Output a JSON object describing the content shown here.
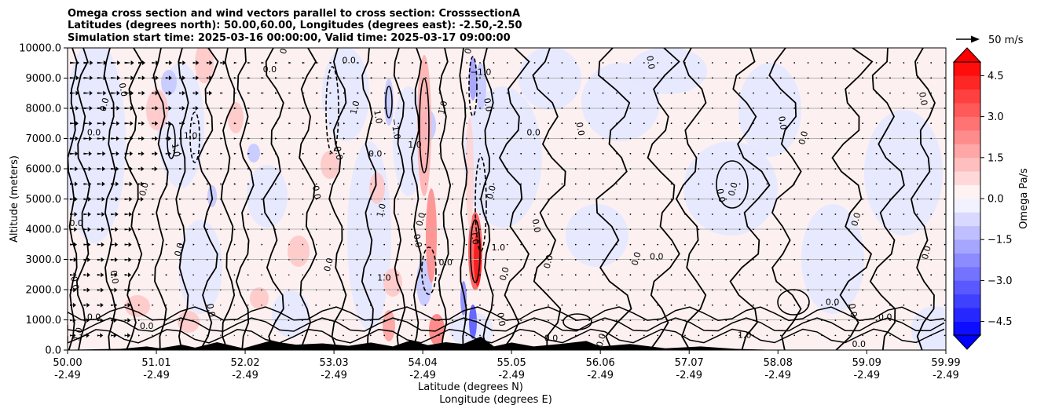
{
  "title_lines": [
    "Omega cross section and wind vectors parallel to cross section: CrosssectionA",
    "Latitudes (degrees north): 50.00,60.00, Longitudes (degrees east): -2.50,-2.50",
    "Simulation start time: 2025-03-16 00:00:00, Valid time: 2025-03-17 09:00:00"
  ],
  "chart_data": {
    "type": "heatmap",
    "x_ticks": [
      {
        "lat": "50.00",
        "lon": "-2.49"
      },
      {
        "lat": "51.01",
        "lon": "-2.49"
      },
      {
        "lat": "52.02",
        "lon": "-2.49"
      },
      {
        "lat": "53.03",
        "lon": "-2.49"
      },
      {
        "lat": "54.04",
        "lon": "-2.49"
      },
      {
        "lat": "55.05",
        "lon": "-2.49"
      },
      {
        "lat": "56.06",
        "lon": "-2.49"
      },
      {
        "lat": "57.07",
        "lon": "-2.49"
      },
      {
        "lat": "58.08",
        "lon": "-2.49"
      },
      {
        "lat": "59.09",
        "lon": "-2.49"
      },
      {
        "lat": "59.99",
        "lon": "-2.49"
      }
    ],
    "xlim": [
      50.0,
      59.99
    ],
    "y_ticks": [
      "0.0",
      "1000.0",
      "2000.0",
      "3000.0",
      "4000.0",
      "5000.0",
      "6000.0",
      "7000.0",
      "8000.0",
      "9000.0",
      "10000.0"
    ],
    "ylim": [
      0,
      10000
    ],
    "xlabel": "Latitude (degrees N)",
    "xlabel2": "Longitude (degrees E)",
    "ylabel": "Altitude (meters)",
    "grid": "horizontal",
    "colorbar": {
      "label": "Omega Pa/s",
      "ticks": [
        "4.5",
        "3.0",
        "1.5",
        "0.0",
        "−1.5",
        "−3.0",
        "−4.5"
      ],
      "range": [
        -5.0,
        5.0
      ],
      "levels": 20,
      "extend": "both",
      "colormap": "bwr"
    },
    "quiver_key": {
      "label": "50 m/s",
      "value": 50
    },
    "contour_labels": [
      {
        "text": "0.0",
        "lat": 50.1,
        "alt": 4100
      },
      {
        "text": "0.0",
        "lat": 50.05,
        "alt": 2200
      },
      {
        "text": "1.0",
        "lat": 50.15,
        "alt": 500
      },
      {
        "text": "0.0",
        "lat": 50.3,
        "alt": 1000
      },
      {
        "text": "0.0",
        "lat": 50.6,
        "alt": 8600
      },
      {
        "text": "0.0",
        "lat": 50.45,
        "alt": 8100
      },
      {
        "text": "0.0",
        "lat": 50.3,
        "alt": 7100
      },
      {
        "text": "0.0",
        "lat": 50.5,
        "alt": 2400
      },
      {
        "text": "0.0",
        "lat": 50.9,
        "alt": 5300
      },
      {
        "text": "0.0",
        "lat": 50.9,
        "alt": 700
      },
      {
        "text": "1.0",
        "lat": 51.2,
        "alt": 6600
      },
      {
        "text": "0.0",
        "lat": 51.3,
        "alt": 3300
      },
      {
        "text": "1.0",
        "lat": 51.4,
        "alt": 7000
      },
      {
        "text": "0.0",
        "lat": 51.6,
        "alt": 1300
      },
      {
        "text": "0.0",
        "lat": 52.5,
        "alt": 10000
      },
      {
        "text": "0.0",
        "lat": 52.3,
        "alt": 9200
      },
      {
        "text": "0.0",
        "lat": 52.8,
        "alt": 5200
      },
      {
        "text": "0.0",
        "lat": 53.0,
        "alt": 2800
      },
      {
        "text": "0.0",
        "lat": 53.2,
        "alt": 9500
      },
      {
        "text": "0.0",
        "lat": 53.05,
        "alt": 6500
      },
      {
        "text": "1.0",
        "lat": 53.3,
        "alt": 8000
      },
      {
        "text": "0.0",
        "lat": 53.5,
        "alt": 6400
      },
      {
        "text": "1.0",
        "lat": 53.5,
        "alt": 7700
      },
      {
        "text": "1.0",
        "lat": 53.6,
        "alt": 4600
      },
      {
        "text": "1.0",
        "lat": 53.6,
        "alt": 2300
      },
      {
        "text": "−1.0",
        "lat": 53.7,
        "alt": 7300
      },
      {
        "text": "1.0",
        "lat": 54.3,
        "alt": 8000
      },
      {
        "text": "1.0",
        "lat": 53.95,
        "alt": 6700
      },
      {
        "text": "0.0",
        "lat": 53.95,
        "alt": 3600
      },
      {
        "text": "0.0",
        "lat": 54.05,
        "alt": 4300
      },
      {
        "text": "0.0",
        "lat": 54.3,
        "alt": 2800
      },
      {
        "text": "1.0",
        "lat": 54.6,
        "alt": 3700
      },
      {
        "text": "0.0",
        "lat": 54.6,
        "alt": 10000
      },
      {
        "text": "−1.0",
        "lat": 54.7,
        "alt": 9100
      },
      {
        "text": "0.0",
        "lat": 54.75,
        "alt": 8100
      },
      {
        "text": "0.0",
        "lat": 54.85,
        "alt": 5200
      },
      {
        "text": "1.0",
        "lat": 54.9,
        "alt": 3300
      },
      {
        "text": "0.0",
        "lat": 54.9,
        "alt": 1000
      },
      {
        "text": "0.0",
        "lat": 55.0,
        "alt": 2500
      },
      {
        "text": "0.0",
        "lat": 55.3,
        "alt": 7100
      },
      {
        "text": "0.0",
        "lat": 55.3,
        "alt": 4100
      },
      {
        "text": "0.0",
        "lat": 55.5,
        "alt": 2900
      },
      {
        "text": "0.0",
        "lat": 55.5,
        "alt": 300
      },
      {
        "text": "0.0",
        "lat": 55.8,
        "alt": 7300
      },
      {
        "text": "0.0",
        "lat": 56.1,
        "alt": 300
      },
      {
        "text": "0.0",
        "lat": 56.3,
        "alt": 10000
      },
      {
        "text": "0.0",
        "lat": 56.6,
        "alt": 9500
      },
      {
        "text": "0.0",
        "lat": 56.5,
        "alt": 3000
      },
      {
        "text": "0.0",
        "lat": 56.7,
        "alt": 3000
      },
      {
        "text": "0.0",
        "lat": 57.4,
        "alt": 5100
      },
      {
        "text": "0.0",
        "lat": 57.6,
        "alt": 5300
      },
      {
        "text": "1.0",
        "lat": 57.7,
        "alt": 400
      },
      {
        "text": "0.0",
        "lat": 58.1,
        "alt": 7500
      },
      {
        "text": "0.0",
        "lat": 58.4,
        "alt": 7000
      },
      {
        "text": "0.0",
        "lat": 58.7,
        "alt": 1500
      },
      {
        "text": "0.0",
        "lat": 58.9,
        "alt": 1300
      },
      {
        "text": "0.0",
        "lat": 59.0,
        "alt": 4300
      },
      {
        "text": "0.0",
        "lat": 59.3,
        "alt": 1000
      },
      {
        "text": "0.0",
        "lat": 59.7,
        "alt": 8300
      },
      {
        "text": "0.0",
        "lat": 59.8,
        "alt": 3200
      },
      {
        "text": "0.0",
        "lat": 59.0,
        "alt": 100
      }
    ]
  }
}
